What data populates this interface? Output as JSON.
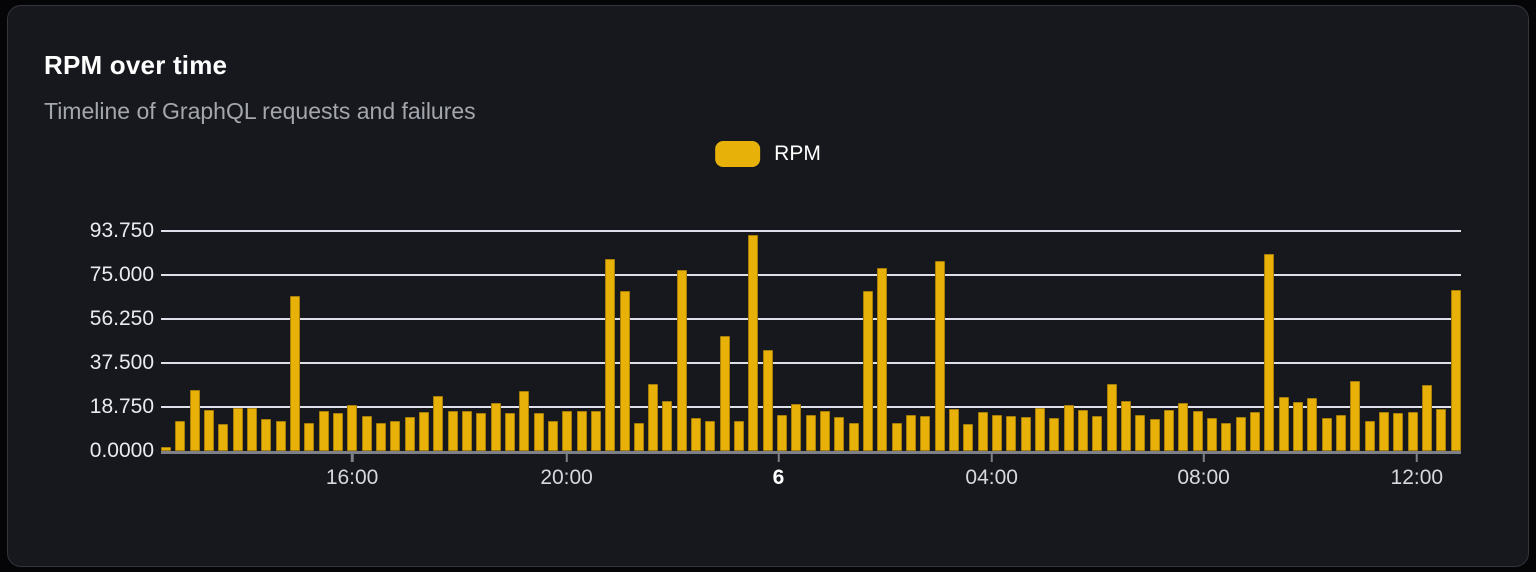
{
  "card": {
    "title": "RPM over time",
    "subtitle": "Timeline of GraphQL requests and failures"
  },
  "legend": {
    "label": "RPM",
    "swatch_color": "#e8b10a"
  },
  "colors": {
    "page_background": "#050507",
    "card_background": "#16181d",
    "card_border": "#33363d",
    "bar_fill": "#e8b10a",
    "gridline": "#dde0e8",
    "axis_line": "#7e8087",
    "title_text": "#ffffff",
    "subtitle_text": "#a3a7ad",
    "tick_text": "#d6d8dc"
  },
  "chart_data": {
    "type": "bar",
    "title": "RPM over time",
    "subtitle": "Timeline of GraphQL requests and failures",
    "series": [
      {
        "name": "RPM",
        "color": "#e8b10a"
      }
    ],
    "ylabel": "",
    "xlabel": "",
    "ylim": [
      0,
      93.75
    ],
    "grid": "horizontal-only",
    "legend_position": "top-center",
    "y_ticks": [
      {
        "label": "0.0000",
        "value": 0
      },
      {
        "label": "18.750",
        "value": 18.75
      },
      {
        "label": "37.500",
        "value": 37.5
      },
      {
        "label": "56.250",
        "value": 56.25
      },
      {
        "label": "75.000",
        "value": 75
      },
      {
        "label": "93.750",
        "value": 93.75
      }
    ],
    "x_ticks": [
      {
        "label": "16:00",
        "pos_pct": 14.7,
        "emphasis": false
      },
      {
        "label": "20:00",
        "pos_pct": 31.2,
        "emphasis": false
      },
      {
        "label": "6",
        "pos_pct": 47.5,
        "emphasis": true
      },
      {
        "label": "04:00",
        "pos_pct": 63.9,
        "emphasis": false
      },
      {
        "label": "08:00",
        "pos_pct": 80.2,
        "emphasis": false
      },
      {
        "label": "12:00",
        "pos_pct": 96.6,
        "emphasis": false
      }
    ],
    "values": [
      1.5,
      13,
      26,
      17.5,
      11.5,
      18.5,
      18.5,
      13.5,
      13,
      66,
      12,
      17,
      16,
      19.5,
      15,
      12,
      13,
      14.5,
      16.5,
      23.5,
      17,
      17,
      16,
      20.5,
      16,
      25.5,
      16,
      13,
      17,
      17,
      17,
      82,
      68,
      12,
      28.5,
      21.5,
      77,
      14,
      13,
      49,
      13,
      92,
      43,
      15.5,
      20,
      15.5,
      17,
      14.5,
      12,
      68,
      78,
      12,
      15.5,
      15,
      81,
      18,
      11.5,
      16.5,
      15.5,
      15,
      14.5,
      18.5,
      14,
      19.5,
      17.5,
      15,
      28.5,
      21.5,
      15.5,
      13.5,
      17.5,
      20.5,
      17,
      14,
      12,
      14.5,
      16.5,
      84,
      23,
      21,
      22.5,
      14,
      15.5,
      30,
      13,
      16.5,
      16,
      16.5,
      28,
      18,
      68.5
    ]
  }
}
